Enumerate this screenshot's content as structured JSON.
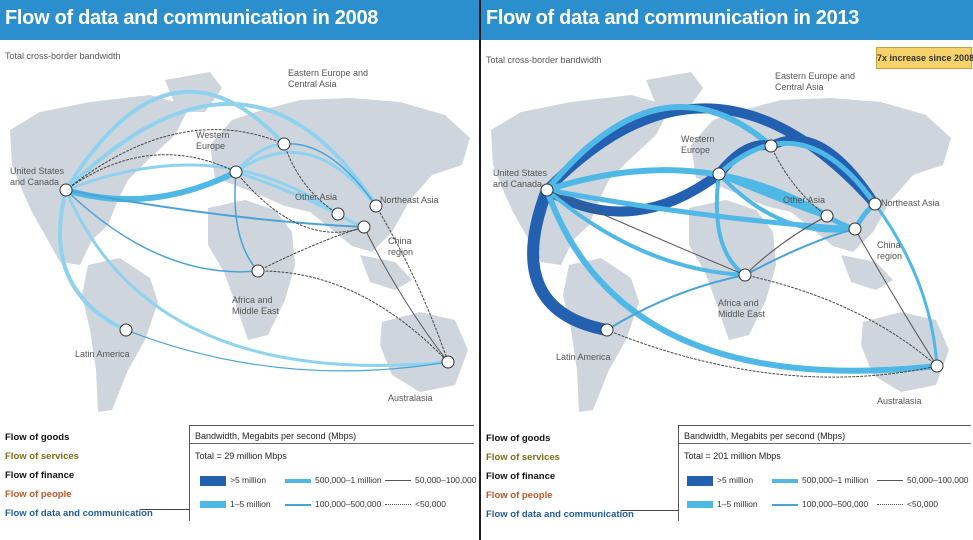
{
  "colors": {
    "title_bar": "#2b8fce",
    "map_land": "#cfd5dc",
    "flow_dark": "#2360b0",
    "flow_medium": "#4fb8e6",
    "flow_light": "#8fd2f0",
    "flow_thin": "#4aa3d8",
    "flow_line": "#555555",
    "flow_dotted": "#444444",
    "badge": "#f5d36a",
    "goods": "#111111",
    "services": "#7a6d12",
    "finance": "#111111",
    "people": "#c0562a",
    "data": "#1e5c9e"
  },
  "icons": {
    "hub": "hub-node-icon"
  },
  "left": {
    "title": "Flow of data and communication in 2008",
    "subtitle": "Total cross-border bandwidth",
    "regions": {
      "us_canada": "United States\nand Canada",
      "western_europe": "Western\nEurope",
      "eastern_europe": "Eastern Europe and\nCentral Asia",
      "other_asia": "Other Asia",
      "northeast_asia": "Northeast Asia",
      "china": "China\nregion",
      "africa": "Africa and\nMiddle East",
      "latin_america": "Latin America",
      "australasia": "Australasia"
    },
    "flows": [
      "Flow of goods",
      "Flow of services",
      "Flow of finance",
      "Flow of people",
      "Flow of data and communication"
    ],
    "legend": {
      "header": "Bandwidth, Megabits per second (Mbps)",
      "total": "Total = 29 million Mbps",
      "items": [
        ">5 million",
        "500,000–1 million",
        "50,000–100,000",
        "1–5 million",
        "100,000–500,000",
        "<50,000"
      ]
    }
  },
  "right": {
    "title": "Flow of data and communication in 2013",
    "subtitle": "Total cross-border bandwidth",
    "badge": "7x increase since 2008",
    "regions": {
      "us_canada": "United States\nand Canada",
      "western_europe": "Western\nEurope",
      "eastern_europe": "Eastern Europe and\nCentral Asia",
      "other_asia": "Other Asia",
      "northeast_asia": "Northeast Asia",
      "china": "China\nregion",
      "africa": "Africa and\nMiddle East",
      "latin_america": "Latin America",
      "australasia": "Australasia"
    },
    "flows": [
      "Flow of goods",
      "Flow of services",
      "Flow of finance",
      "Flow of people",
      "Flow of data and communication"
    ],
    "legend": {
      "header": "Bandwidth, Megabits per second (Mbps)",
      "total": "Total = 201 million Mbps",
      "items": [
        ">5 million",
        "500,000–1 million",
        "50,000–100,000",
        "1–5 million",
        "100,000–500,000",
        "<50,000"
      ]
    }
  }
}
